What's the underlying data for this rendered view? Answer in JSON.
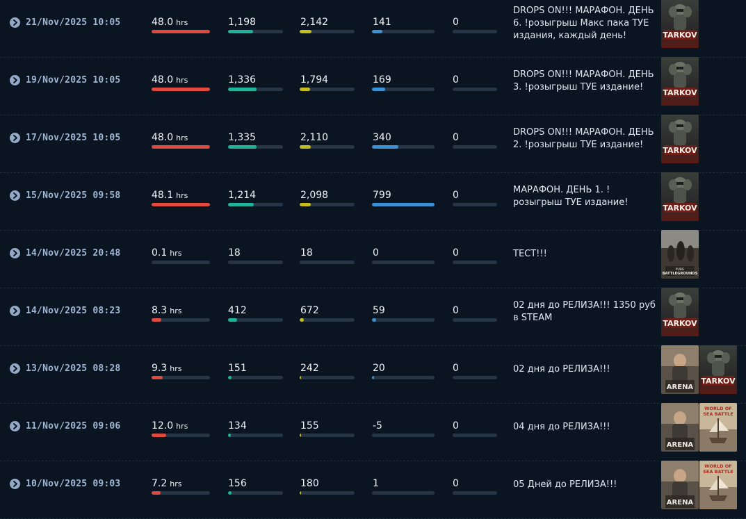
{
  "rows": [
    {
      "date": "21/Nov/2025 10:05",
      "hours": "48.0",
      "hours_unit": "hrs",
      "hours_pct": 1.0,
      "c1": "1,198",
      "c1_pct": 0.45,
      "c2": "2,142",
      "c2_pct": 0.22,
      "c3": "141",
      "c3_pct": 0.17,
      "c4": "0",
      "c4_pct": 0,
      "title": "DROPS ON!!! МАРАФОН. ДЕНЬ 6. !розыгрыш Макс пака ТУЕ издания, каждый день!",
      "games": [
        "tarkov"
      ]
    },
    {
      "date": "19/Nov/2025 10:05",
      "hours": "48.0",
      "hours_unit": "hrs",
      "hours_pct": 1.0,
      "c1": "1,336",
      "c1_pct": 0.52,
      "c2": "1,794",
      "c2_pct": 0.19,
      "c3": "169",
      "c3_pct": 0.21,
      "c4": "0",
      "c4_pct": 0,
      "title": "DROPS ON!!! МАРАФОН. ДЕНЬ 3. !розыгрыш ТУЕ издание!",
      "games": [
        "tarkov"
      ]
    },
    {
      "date": "17/Nov/2025 10:05",
      "hours": "48.0",
      "hours_unit": "hrs",
      "hours_pct": 1.0,
      "c1": "1,335",
      "c1_pct": 0.52,
      "c2": "2,110",
      "c2_pct": 0.2,
      "c3": "340",
      "c3_pct": 0.42,
      "c4": "0",
      "c4_pct": 0,
      "title": "DROPS ON!!! МАРАФОН. ДЕНЬ 2. !розыгрыш ТУЕ издание!",
      "games": [
        "tarkov"
      ]
    },
    {
      "date": "15/Nov/2025 09:58",
      "hours": "48.1",
      "hours_unit": "hrs",
      "hours_pct": 1.0,
      "c1": "1,214",
      "c1_pct": 0.47,
      "c2": "2,098",
      "c2_pct": 0.2,
      "c3": "799",
      "c3_pct": 1.0,
      "c4": "0",
      "c4_pct": 0,
      "title": "МАРАФОН. ДЕНЬ 1. !розыгрыш ТУЕ издание!",
      "games": [
        "tarkov"
      ]
    },
    {
      "date": "14/Nov/2025 20:48",
      "hours": "0.1",
      "hours_unit": "hrs",
      "hours_pct": 0,
      "c1": "18",
      "c1_pct": 0,
      "c2": "18",
      "c2_pct": 0,
      "c3": "0",
      "c3_pct": 0,
      "c4": "0",
      "c4_pct": 0,
      "title": "ТЕСТ!!!",
      "games": [
        "pubg"
      ]
    },
    {
      "date": "14/Nov/2025 08:23",
      "hours": "8.3",
      "hours_unit": "hrs",
      "hours_pct": 0.17,
      "c1": "412",
      "c1_pct": 0.16,
      "c2": "672",
      "c2_pct": 0.07,
      "c3": "59",
      "c3_pct": 0.07,
      "c4": "0",
      "c4_pct": 0,
      "title": "02 дня до РЕЛИЗА!!! 1350 руб в STEAM",
      "games": [
        "tarkov"
      ]
    },
    {
      "date": "13/Nov/2025 08:28",
      "hours": "9.3",
      "hours_unit": "hrs",
      "hours_pct": 0.19,
      "c1": "151",
      "c1_pct": 0.06,
      "c2": "242",
      "c2_pct": 0.03,
      "c3": "20",
      "c3_pct": 0.02,
      "c4": "0",
      "c4_pct": 0,
      "title": "02 дня до РЕЛИЗА!!!",
      "games": [
        "arena",
        "tarkov"
      ]
    },
    {
      "date": "11/Nov/2025 09:06",
      "hours": "12.0",
      "hours_unit": "hrs",
      "hours_pct": 0.25,
      "c1": "134",
      "c1_pct": 0.05,
      "c2": "155",
      "c2_pct": 0.02,
      "c3": "-5",
      "c3_pct": 0,
      "c4": "0",
      "c4_pct": 0,
      "title": "04 дня до РЕЛИЗА!!!",
      "games": [
        "arena",
        "seabattle"
      ]
    },
    {
      "date": "10/Nov/2025 09:03",
      "hours": "7.2",
      "hours_unit": "hrs",
      "hours_pct": 0.15,
      "c1": "156",
      "c1_pct": 0.06,
      "c2": "180",
      "c2_pct": 0.02,
      "c3": "1",
      "c3_pct": 0,
      "c4": "0",
      "c4_pct": 0,
      "title": "05 Дней до РЕЛИЗА!!!",
      "games": [
        "arena",
        "seabattle"
      ]
    }
  ],
  "thumb_art": {
    "tarkov": {
      "logo": "TARKOV",
      "tagline": "ESCAPE FROM"
    },
    "pubg": {
      "logo": "BATTLEGROUNDS",
      "tagline": "PUBG"
    },
    "arena": {
      "logo": "ARENA",
      "tagline": "TARKOV"
    },
    "seabattle": {
      "logo": "WORLD OF SEA BATTLE",
      "tagline": ""
    }
  },
  "colors": {
    "hours": "#e04a3f",
    "col1": "#1fb39a",
    "col2": "#c5be1f",
    "col3": "#3b91d6",
    "track": "#263647"
  }
}
